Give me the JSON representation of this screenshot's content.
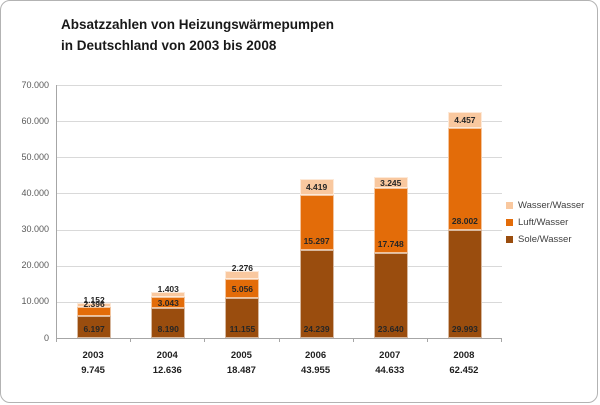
{
  "chart_data": {
    "type": "bar",
    "stacked": true,
    "title_lines": [
      "Absatzzahlen von Heizungswärmepumpen",
      "in Deutschland von 2003 bis 2008"
    ],
    "categories": [
      "2003",
      "2004",
      "2005",
      "2006",
      "2007",
      "2008"
    ],
    "totals": [
      9745,
      12636,
      18487,
      43955,
      44633,
      62452
    ],
    "total_labels": [
      "9.745",
      "12.636",
      "18.487",
      "43.955",
      "44.633",
      "62.452"
    ],
    "series": [
      {
        "name": "Sole/Wasser",
        "color": "#9A4D0E",
        "values": [
          6197,
          8190,
          11155,
          24239,
          23640,
          29993
        ],
        "labels": [
          "6.197",
          "8.190",
          "11.155",
          "24.239",
          "23.640",
          "29.993"
        ]
      },
      {
        "name": "Luft/Wasser",
        "color": "#E36C09",
        "values": [
          2396,
          3043,
          5056,
          15297,
          17748,
          28002
        ],
        "labels": [
          "2.396",
          "3.043",
          "5.056",
          "15.297",
          "17.748",
          "28.002"
        ]
      },
      {
        "name": "Wasser/Wasser",
        "color": "#F9C89F",
        "values": [
          1152,
          1403,
          2276,
          4419,
          3245,
          4457
        ],
        "labels": [
          "1.152",
          "1.403",
          "2.276",
          "4.419",
          "3.245",
          "4.457"
        ]
      }
    ],
    "legend": {
      "position": "right",
      "entries": [
        {
          "label": "Wasser/Wasser",
          "color": "#F9C89F"
        },
        {
          "label": "Luft/Wasser",
          "color": "#E36C09"
        },
        {
          "label": "Sole/Wasser",
          "color": "#9A4D0E"
        }
      ]
    },
    "y_axis": {
      "min": 0,
      "max": 70000,
      "step": 10000,
      "tick_labels": [
        "0",
        "10.000",
        "20.000",
        "30.000",
        "40.000",
        "50.000",
        "60.000",
        "70.000"
      ],
      "grid": true
    },
    "colors": {
      "gridline": "#d9d9d9",
      "axis_line": "#a6a6a6",
      "frame_border": "#b3b3b3",
      "background": "#ffffff"
    }
  }
}
